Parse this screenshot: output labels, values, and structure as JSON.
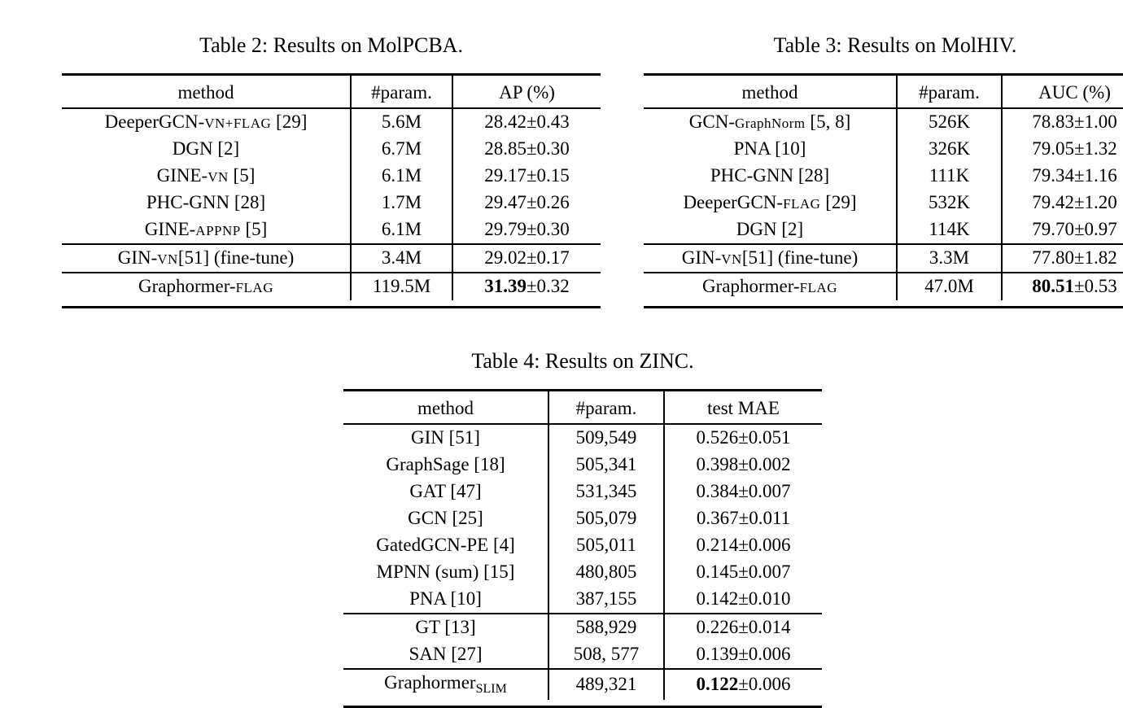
{
  "page": {
    "background_color": "#ffffff",
    "text_color": "#000000"
  },
  "tables": {
    "molpcba": {
      "caption": "Table 2: Results on MolPCBA.",
      "columns": [
        "method",
        "#param.",
        "AP (%)"
      ],
      "sections": [
        [
          {
            "method": [
              [
                "DeeperGCN-",
                "n"
              ],
              [
                "VN+FLAG",
                "sc"
              ],
              [
                " [29]",
                "n"
              ]
            ],
            "param": "5.6M",
            "result": [
              [
                "28.42±0.43",
                "n"
              ]
            ]
          },
          {
            "method": [
              [
                "DGN [2]",
                "n"
              ]
            ],
            "param": "6.7M",
            "result": [
              [
                "28.85±0.30",
                "n"
              ]
            ]
          },
          {
            "method": [
              [
                "GINE-",
                "n"
              ],
              [
                "VN",
                "sc"
              ],
              [
                " [5]",
                "n"
              ]
            ],
            "param": "6.1M",
            "result": [
              [
                "29.17±0.15",
                "n"
              ]
            ]
          },
          {
            "method": [
              [
                "PHC-GNN [28]",
                "n"
              ]
            ],
            "param": "1.7M",
            "result": [
              [
                "29.47±0.26",
                "n"
              ]
            ]
          },
          {
            "method": [
              [
                "GINE-",
                "n"
              ],
              [
                "APPNP",
                "sc"
              ],
              [
                " [5]",
                "n"
              ]
            ],
            "param": "6.1M",
            "result": [
              [
                "29.79±0.30",
                "n"
              ]
            ]
          }
        ],
        [
          {
            "method": [
              [
                "GIN-",
                "n"
              ],
              [
                "VN",
                "sc"
              ],
              [
                "[51] (fine-tune)",
                "n"
              ]
            ],
            "param": "3.4M",
            "result": [
              [
                "29.02±0.17",
                "n"
              ]
            ]
          }
        ],
        [
          {
            "method": [
              [
                "Graphormer-",
                "n"
              ],
              [
                "FLAG",
                "sc"
              ]
            ],
            "param": "119.5M",
            "result": [
              [
                "31.39",
                "b"
              ],
              [
                "±0.32",
                "n"
              ]
            ]
          }
        ]
      ]
    },
    "molhiv": {
      "caption": "Table 3: Results on MolHIV.",
      "columns": [
        "method",
        "#param.",
        "AUC (%)"
      ],
      "sections": [
        [
          {
            "method": [
              [
                "GCN-",
                "n"
              ],
              [
                "GraphNorm",
                "sc"
              ],
              [
                " [5, 8]",
                "n"
              ]
            ],
            "param": "526K",
            "result": [
              [
                "78.83±1.00",
                "n"
              ]
            ]
          },
          {
            "method": [
              [
                "PNA [10]",
                "n"
              ]
            ],
            "param": "326K",
            "result": [
              [
                "79.05±1.32",
                "n"
              ]
            ]
          },
          {
            "method": [
              [
                "PHC-GNN [28]",
                "n"
              ]
            ],
            "param": "111K",
            "result": [
              [
                "79.34±1.16",
                "n"
              ]
            ]
          },
          {
            "method": [
              [
                "DeeperGCN-",
                "n"
              ],
              [
                "FLAG",
                "sc"
              ],
              [
                " [29]",
                "n"
              ]
            ],
            "param": "532K",
            "result": [
              [
                "79.42±1.20",
                "n"
              ]
            ]
          },
          {
            "method": [
              [
                "DGN [2]",
                "n"
              ]
            ],
            "param": "114K",
            "result": [
              [
                "79.70±0.97",
                "n"
              ]
            ]
          }
        ],
        [
          {
            "method": [
              [
                "GIN-",
                "n"
              ],
              [
                "VN",
                "sc"
              ],
              [
                "[51] (fine-tune)",
                "n"
              ]
            ],
            "param": "3.3M",
            "result": [
              [
                "77.80±1.82",
                "n"
              ]
            ]
          }
        ],
        [
          {
            "method": [
              [
                "Graphormer-",
                "n"
              ],
              [
                "FLAG",
                "sc"
              ]
            ],
            "param": "47.0M",
            "result": [
              [
                "80.51",
                "b"
              ],
              [
                "±0.53",
                "n"
              ]
            ]
          }
        ]
      ]
    },
    "zinc": {
      "caption": "Table 4: Results on ZINC.",
      "columns": [
        "method",
        "#param.",
        "test MAE"
      ],
      "sections": [
        [
          {
            "method": [
              [
                "GIN [51]",
                "n"
              ]
            ],
            "param": "509,549",
            "result": [
              [
                "0.526±0.051",
                "n"
              ]
            ]
          },
          {
            "method": [
              [
                "GraphSage [18]",
                "n"
              ]
            ],
            "param": "505,341",
            "result": [
              [
                "0.398±0.002",
                "n"
              ]
            ]
          },
          {
            "method": [
              [
                "GAT [47]",
                "n"
              ]
            ],
            "param": "531,345",
            "result": [
              [
                "0.384±0.007",
                "n"
              ]
            ]
          },
          {
            "method": [
              [
                "GCN [25]",
                "n"
              ]
            ],
            "param": "505,079",
            "result": [
              [
                "0.367±0.011",
                "n"
              ]
            ]
          },
          {
            "method": [
              [
                "GatedGCN-PE [4]",
                "n"
              ]
            ],
            "param": "505,011",
            "result": [
              [
                "0.214±0.006",
                "n"
              ]
            ]
          },
          {
            "method": [
              [
                "MPNN (sum) [15]",
                "n"
              ]
            ],
            "param": "480,805",
            "result": [
              [
                "0.145±0.007",
                "n"
              ]
            ]
          },
          {
            "method": [
              [
                "PNA [10]",
                "n"
              ]
            ],
            "param": "387,155",
            "result": [
              [
                "0.142±0.010",
                "n"
              ]
            ]
          }
        ],
        [
          {
            "method": [
              [
                "GT [13]",
                "n"
              ]
            ],
            "param": "588,929",
            "result": [
              [
                "0.226±0.014",
                "n"
              ]
            ]
          },
          {
            "method": [
              [
                "SAN [27]",
                "n"
              ]
            ],
            "param": "508, 577",
            "result": [
              [
                "0.139±0.006",
                "n"
              ]
            ]
          }
        ],
        [
          {
            "method": [
              [
                "Graphormer",
                "n"
              ],
              [
                "SLIM",
                "sub"
              ]
            ],
            "param": "489,321",
            "result": [
              [
                "0.122",
                "b"
              ],
              [
                "±0.006",
                "n"
              ]
            ]
          }
        ]
      ]
    }
  }
}
